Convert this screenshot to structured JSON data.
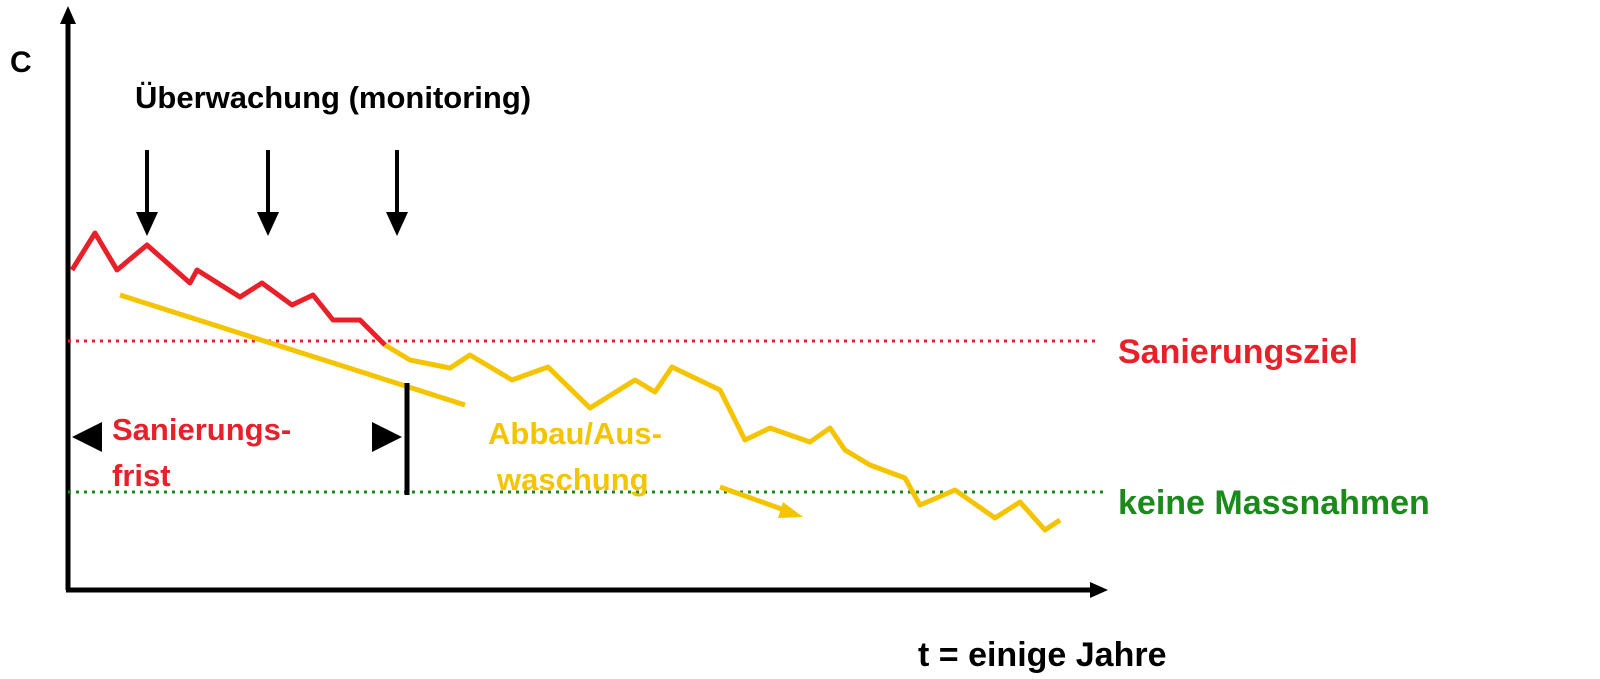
{
  "axis_labels": {
    "y": "C",
    "x": "t = einige Jahre"
  },
  "monitoring_label": "Überwachung (monitoring)",
  "levels": {
    "target": "Sanierungsziel",
    "no_action": "keine Massnahmen"
  },
  "period_label": {
    "line1": "Sanierungs-",
    "line2": "frist"
  },
  "decay_label": {
    "line1": "Abbau/Aus-",
    "line2": "waschung"
  }
}
